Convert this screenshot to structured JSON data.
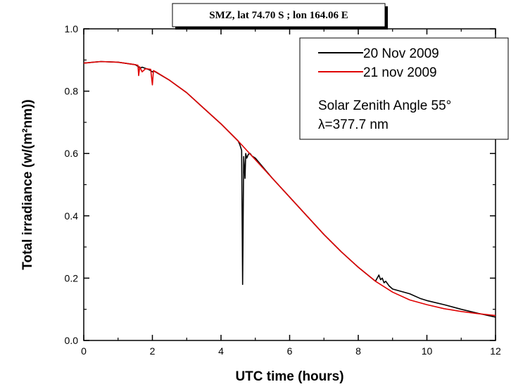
{
  "chart_data": {
    "type": "line",
    "title": "SMZ, lat 74.70 S ; lon 164.06 E",
    "xlabel": "UTC time (hours)",
    "ylabel": "Total irradiance (w/(m²nm))",
    "xlim": [
      0,
      12
    ],
    "ylim": [
      0.0,
      1.0
    ],
    "xticks": [
      0,
      2,
      4,
      6,
      8,
      10,
      12
    ],
    "xtick_labels": [
      "0",
      "2",
      "4",
      "6",
      "8",
      "10",
      "12"
    ],
    "yticks": [
      0.0,
      0.2,
      0.4,
      0.6,
      0.8,
      1.0
    ],
    "ytick_labels": [
      "0.0",
      "0.2",
      "0.4",
      "0.6",
      "0.8",
      "1.0"
    ],
    "grid": false,
    "legend_position": "top-right",
    "annotations": [
      "Solar Zenith Angle 55°",
      "λ=377.7 nm"
    ],
    "series": [
      {
        "name": "20 Nov 2009",
        "color": "#000000",
        "x": [
          0.0,
          0.5,
          1.0,
          1.5,
          1.6,
          1.65,
          1.7,
          1.8,
          1.9,
          2.0,
          2.05,
          2.1,
          2.5,
          3.0,
          3.5,
          4.0,
          4.5,
          4.55,
          4.6,
          4.63,
          4.66,
          4.7,
          4.72,
          4.75,
          4.8,
          4.85,
          4.9,
          5.0,
          5.5,
          6.0,
          6.5,
          7.0,
          7.5,
          8.0,
          8.5,
          8.6,
          8.65,
          8.7,
          8.75,
          8.8,
          8.9,
          9.0,
          9.5,
          9.8,
          10.0,
          10.5,
          11.0,
          11.5,
          12.0
        ],
        "y": [
          0.89,
          0.895,
          0.893,
          0.885,
          0.878,
          0.874,
          0.877,
          0.873,
          0.869,
          0.862,
          0.864,
          0.861,
          0.835,
          0.795,
          0.745,
          0.695,
          0.64,
          0.628,
          0.61,
          0.18,
          0.59,
          0.52,
          0.6,
          0.585,
          0.598,
          0.6,
          0.592,
          0.585,
          0.52,
          0.46,
          0.4,
          0.34,
          0.285,
          0.235,
          0.19,
          0.21,
          0.195,
          0.2,
          0.185,
          0.19,
          0.175,
          0.165,
          0.15,
          0.135,
          0.128,
          0.115,
          0.1,
          0.087,
          0.075
        ]
      },
      {
        "name": "21 nov 2009",
        "color": "#e00000",
        "x": [
          0.0,
          0.5,
          1.0,
          1.5,
          1.58,
          1.6,
          1.63,
          1.7,
          1.8,
          1.95,
          2.0,
          2.03,
          2.1,
          2.5,
          3.0,
          3.5,
          4.0,
          4.5,
          5.0,
          5.5,
          6.0,
          6.5,
          7.0,
          7.5,
          8.0,
          8.5,
          9.0,
          9.5,
          10.0,
          10.5,
          11.0,
          11.5,
          12.0
        ],
        "y": [
          0.89,
          0.895,
          0.893,
          0.885,
          0.883,
          0.85,
          0.878,
          0.862,
          0.872,
          0.87,
          0.82,
          0.866,
          0.862,
          0.835,
          0.795,
          0.745,
          0.695,
          0.64,
          0.58,
          0.52,
          0.46,
          0.4,
          0.34,
          0.285,
          0.235,
          0.19,
          0.155,
          0.13,
          0.115,
          0.102,
          0.093,
          0.086,
          0.08
        ]
      }
    ]
  }
}
